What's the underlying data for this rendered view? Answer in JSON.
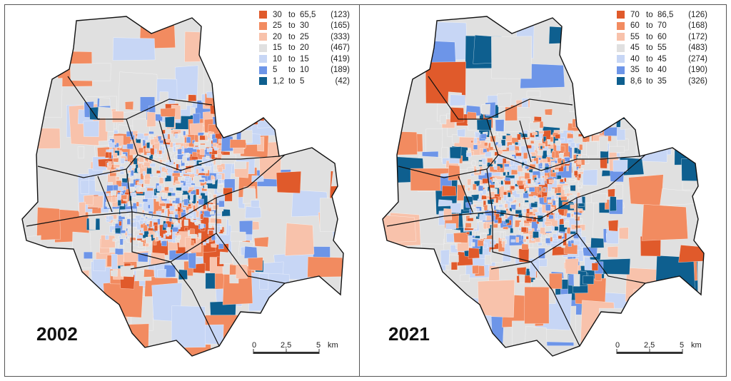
{
  "maps": [
    {
      "year": "2002",
      "colors": [
        "#e05a2b",
        "#f28b60",
        "#f8c2ab",
        "#e0e0e0",
        "#c7d6f5",
        "#6d95e8",
        "#0e5f8f"
      ],
      "legend": [
        {
          "lo": "30",
          "to": "to",
          "hi": "65,5",
          "count": "(123)"
        },
        {
          "lo": "25",
          "to": "to",
          "hi": "30",
          "count": "(165)"
        },
        {
          "lo": "20",
          "to": "to",
          "hi": "25",
          "count": "(333)"
        },
        {
          "lo": "15",
          "to": "to",
          "hi": "20",
          "count": "(467)"
        },
        {
          "lo": "10",
          "to": "to",
          "hi": "15",
          "count": "(419)"
        },
        {
          "lo": "5",
          "to": "to",
          "hi": "10",
          "count": "(189)"
        },
        {
          "lo": "1,2",
          "to": "to",
          "hi": "5",
          "count": "(42)"
        }
      ],
      "scale": {
        "t0": "0",
        "t1": "2,5",
        "t2": "5",
        "unit": "km"
      }
    },
    {
      "year": "2021",
      "colors": [
        "#e05a2b",
        "#f28b60",
        "#f8c2ab",
        "#e0e0e0",
        "#c7d6f5",
        "#6d95e8",
        "#0e5f8f"
      ],
      "legend": [
        {
          "lo": "70",
          "to": "to",
          "hi": "86,5",
          "count": "(126)"
        },
        {
          "lo": "60",
          "to": "to",
          "hi": "70",
          "count": "(168)"
        },
        {
          "lo": "55",
          "to": "to",
          "hi": "60",
          "count": "(172)"
        },
        {
          "lo": "45",
          "to": "to",
          "hi": "55",
          "count": "(483)"
        },
        {
          "lo": "40",
          "to": "to",
          "hi": "45",
          "count": "(274)"
        },
        {
          "lo": "35",
          "to": "to",
          "hi": "40",
          "count": "(190)"
        },
        {
          "lo": "8,6",
          "to": "to",
          "hi": "35",
          "count": "(326)"
        }
      ],
      "scale": {
        "t0": "0",
        "t1": "2,5",
        "t2": "5",
        "unit": "km"
      }
    }
  ]
}
